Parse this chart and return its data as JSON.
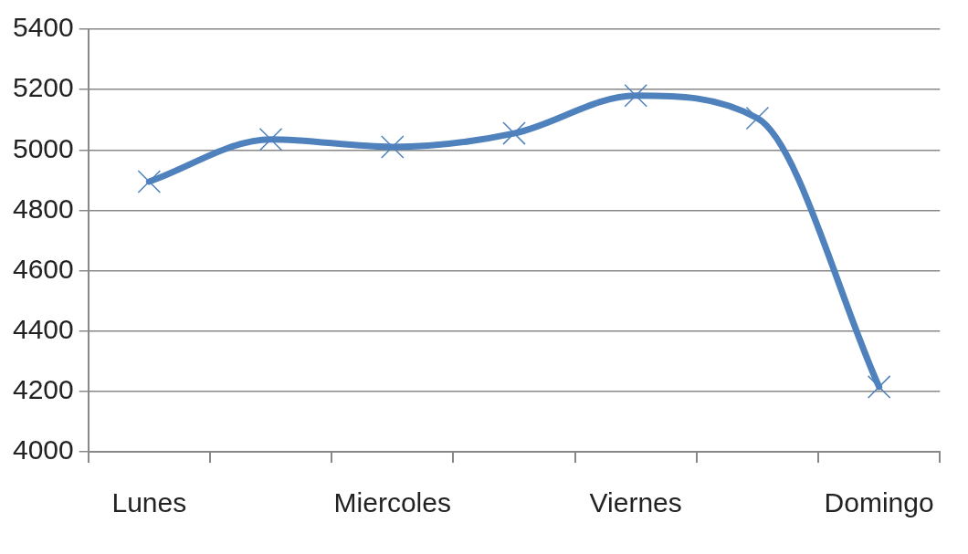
{
  "chart_data": {
    "type": "line",
    "categories": [
      "Lunes",
      null,
      "Miercoles",
      null,
      "Viernes",
      null,
      "Domingo"
    ],
    "series": [
      {
        "color": "#4f81bd",
        "values": [
          4895,
          5035,
          5010,
          5055,
          5180,
          5105,
          4215
        ]
      }
    ],
    "ylim": [
      4000,
      5400
    ],
    "yticks": [
      4000,
      4200,
      4400,
      4600,
      4800,
      5000,
      5200,
      5400
    ],
    "grid": "y",
    "legend": false,
    "marker": "cross",
    "line_style": "solid"
  }
}
